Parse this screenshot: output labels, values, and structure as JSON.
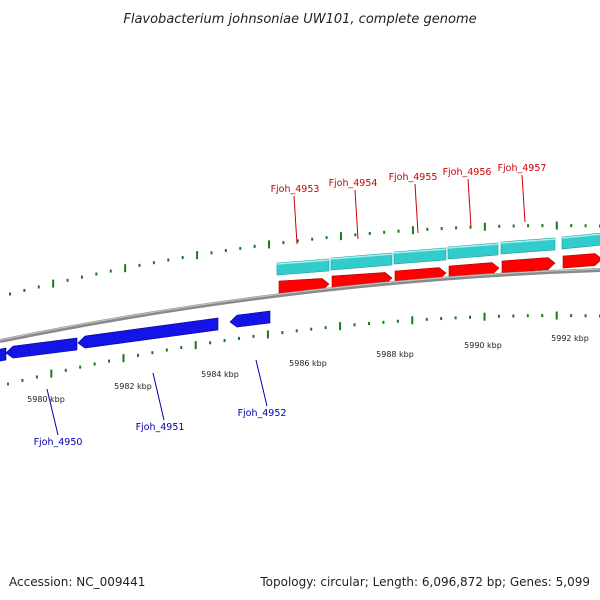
{
  "title": "Flavobacterium johnsoniae UW101, complete genome",
  "footer": {
    "accession": "Accession: NC_009441",
    "summary": "Topology: circular; Length: 6,096,872 bp; Genes: 5,099"
  },
  "colors": {
    "top_label": "#cc0000",
    "bottom_label": "#0000aa",
    "tick": "#1a7a1a",
    "backbone": "#8a8a8a",
    "gene_blue": "#1414e6",
    "gene_red": "#ff0000",
    "gene_cyan": "#33cccc"
  },
  "scale_labels": [
    "5980 kbp",
    "5982 kbp",
    "5984 kbp",
    "5986 kbp",
    "5988 kbp",
    "5990 kbp",
    "5992 kbp"
  ],
  "gene_labels_top": [
    "Fjoh_4953",
    "Fjoh_4954",
    "Fjoh_4955",
    "Fjoh_4956",
    "Fjoh_4957"
  ],
  "gene_labels_bottom": [
    "Fjoh_4950",
    "Fjoh_4951",
    "Fjoh_4952"
  ]
}
